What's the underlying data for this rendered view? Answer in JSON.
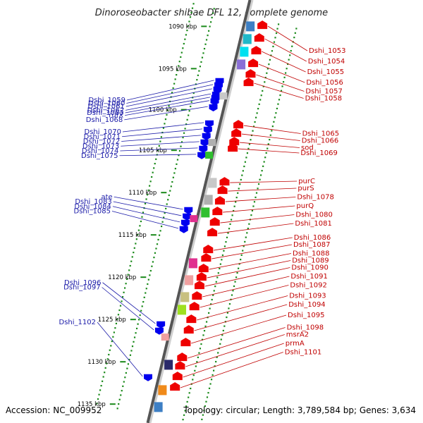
{
  "title": "Dinoroseobacter shibae DFL 12, complete genome",
  "footer": {
    "accession": "Accession: NC_009952",
    "summary": "Topology: circular; Length: 3,789,584 bp; Genes: 3,634"
  },
  "kbp_ticks": [
    {
      "label": "1090 kbp",
      "t": 0.085
    },
    {
      "label": "1095 kbp",
      "t": 0.185
    },
    {
      "label": "1100 kbp",
      "t": 0.282
    },
    {
      "label": "1105 kbp",
      "t": 0.378
    },
    {
      "label": "1110 kbp",
      "t": 0.478
    },
    {
      "label": "1115 kbp",
      "t": 0.578
    },
    {
      "label": "1120 kbp",
      "t": 0.678
    },
    {
      "label": "1125 kbp",
      "t": 0.778
    },
    {
      "label": "1130 kbp",
      "t": 0.878
    },
    {
      "label": "1135 kbp",
      "t": 0.978
    }
  ],
  "left_genes": [
    {
      "name": "Dshi_1059",
      "t": 0.2
    },
    {
      "name": "Dshi_1060",
      "t": 0.21
    },
    {
      "name": "Dshi_1061",
      "t": 0.22
    },
    {
      "name": "Dshi_1062",
      "t": 0.232
    },
    {
      "name": "Dshi_1063",
      "t": 0.24
    },
    {
      "name": "rufX",
      "t": 0.248
    },
    {
      "name": "Dshi_1068",
      "t": 0.262
    },
    {
      "name": "Dshi_1070",
      "t": 0.3
    },
    {
      "name": "Dshi_1071",
      "t": 0.315
    },
    {
      "name": "Dshi_1072",
      "t": 0.33
    },
    {
      "name": "Dshi_1073",
      "t": 0.345
    },
    {
      "name": "Dshi_1074",
      "t": 0.36
    },
    {
      "name": "Dshi_1075",
      "t": 0.375
    },
    {
      "name": "ate",
      "t": 0.505
    },
    {
      "name": "Dshi_1083",
      "t": 0.52
    },
    {
      "name": "Dshi_1084",
      "t": 0.535
    },
    {
      "name": "Dshi_1085",
      "t": 0.55
    },
    {
      "name": "Dshi_1096",
      "t": 0.775
    },
    {
      "name": "Dshi_1097",
      "t": 0.79
    },
    {
      "name": "Dshi_1102",
      "t": 0.9
    }
  ],
  "right_genes": [
    {
      "name": "Dshi_1053",
      "t": 0.05
    },
    {
      "name": "Dshi_1054",
      "t": 0.08
    },
    {
      "name": "Dshi_1055",
      "t": 0.11
    },
    {
      "name": "Dshi_1056",
      "t": 0.14
    },
    {
      "name": "Dshi_1057",
      "t": 0.165
    },
    {
      "name": "Dshi_1058",
      "t": 0.185
    },
    {
      "name": "Dshi_1065",
      "t": 0.285
    },
    {
      "name": "Dshi_1066",
      "t": 0.305
    },
    {
      "name": "sod",
      "t": 0.325
    },
    {
      "name": "Dshi_1069",
      "t": 0.34
    },
    {
      "name": "purC",
      "t": 0.42
    },
    {
      "name": "purS",
      "t": 0.44
    },
    {
      "name": "Dshi_1078",
      "t": 0.465
    },
    {
      "name": "purQ",
      "t": 0.49
    },
    {
      "name": "Dshi_1080",
      "t": 0.515
    },
    {
      "name": "Dshi_1081",
      "t": 0.54
    },
    {
      "name": "Dshi_1086",
      "t": 0.58
    },
    {
      "name": "Dshi_1087",
      "t": 0.6
    },
    {
      "name": "Dshi_1088",
      "t": 0.625
    },
    {
      "name": "Dshi_1089",
      "t": 0.645
    },
    {
      "name": "Dshi_1090",
      "t": 0.665
    },
    {
      "name": "Dshi_1091",
      "t": 0.69
    },
    {
      "name": "Dshi_1092",
      "t": 0.715
    },
    {
      "name": "Dshi_1093",
      "t": 0.745
    },
    {
      "name": "Dshi_1094",
      "t": 0.77
    },
    {
      "name": "Dshi_1095",
      "t": 0.8
    },
    {
      "name": "Dshi_1098",
      "t": 0.835
    },
    {
      "name": "msrA2",
      "t": 0.855
    },
    {
      "name": "prmA",
      "t": 0.88
    },
    {
      "name": "Dshi_1101",
      "t": 0.905
    }
  ],
  "colors": {
    "backbone": "#888888",
    "forward_cds": "#0000ee",
    "reverse_cds": "#ee0000",
    "dots": "#1a8a1a",
    "left_label": "#1a1aa8",
    "right_label": "#c00000"
  }
}
